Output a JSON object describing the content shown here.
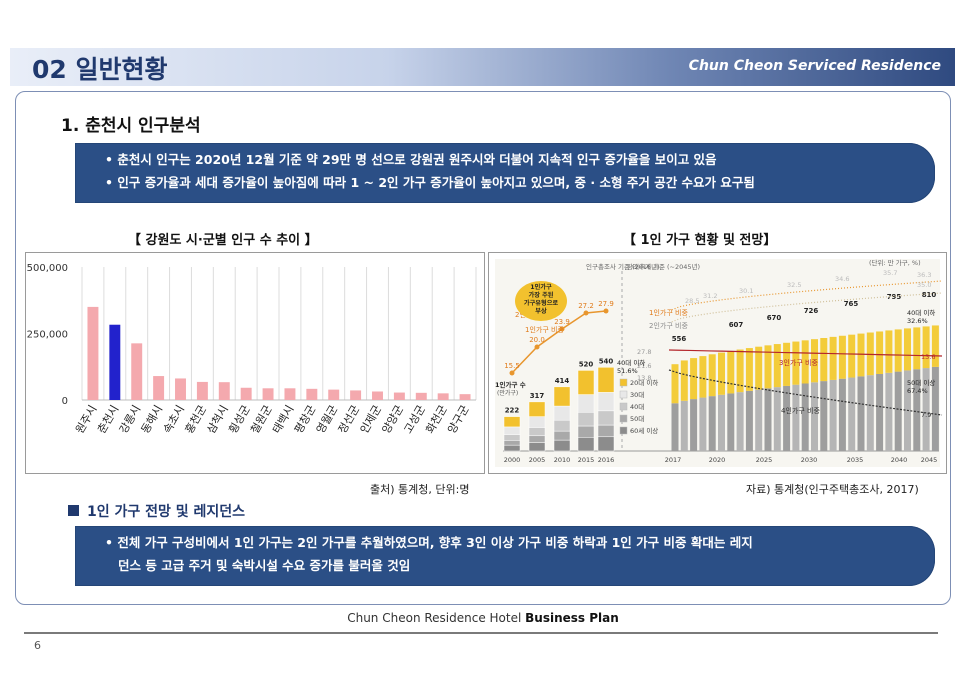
{
  "header": {
    "title": "02 일반현황",
    "brand": "Chun Cheon  Serviced Residence"
  },
  "section": {
    "title": "1. 춘천시 인구분석"
  },
  "bullets_top": [
    "• 춘천시 인구는 2020년 12월 기준 약 29만 명 선으로 강원권 원주시와 더불어 지속적 인구 증가율을 보이고 있음",
    "• 인구 증가율과 세대 증가율이 높아짐에 따라 1 ~ 2인 가구 증가율이 높아지고 있으며, 중 · 소형 주거 공간 수요가 요구됨"
  ],
  "left_caption": "【 강원도 시·군별 인구 수 추이 】",
  "right_caption": "【 1인 가구 현황 및 전망】",
  "chart_data": {
    "type": "bar",
    "categories": [
      "원주시",
      "춘천시",
      "강릉시",
      "동해시",
      "속초시",
      "홍천군",
      "삼척시",
      "횡성군",
      "철원군",
      "태백시",
      "평창군",
      "영월군",
      "정선군",
      "인제군",
      "양양군",
      "고성군",
      "화천군",
      "양구군"
    ],
    "values": [
      350000,
      283000,
      213000,
      90000,
      81000,
      68000,
      67000,
      46000,
      44000,
      44000,
      42000,
      39000,
      36000,
      32000,
      28000,
      27000,
      25000,
      22000
    ],
    "highlight": "춘천시",
    "colors": {
      "normal": "#f4a9ae",
      "highlight": "#2222cc"
    },
    "yticks": [
      "500,000",
      "250,000",
      "0"
    ],
    "ylim": [
      0,
      500000
    ],
    "grid": "vertical"
  },
  "household": {
    "years": [
      "2000",
      "2005",
      "2010",
      "2015",
      "2016",
      "2017",
      "2020",
      "2025",
      "2030",
      "2035",
      "2040",
      "2045"
    ],
    "totals": [
      "222",
      "317",
      "414",
      "520",
      "540",
      "",
      "607",
      "670",
      "726",
      "765",
      "795",
      "810"
    ],
    "ratio_labels": [
      "15.5",
      "20.0",
      "23.9",
      "27.2",
      "27.9"
    ],
    "top_note": "인구총조사 기준 (2016년)",
    "top_note2": "장래추계 기준 (~2045년)",
    "unit_note": "(단위: 만 가구, %)",
    "bubble": [
      "1인가구",
      "가장 주된",
      "가구유형으로",
      "부상"
    ],
    "series_ratio_1": "1인가구 비중",
    "series_ratio_2": "2인가구 비중",
    "series_ratio_3": "3인가구 비중",
    "series_ratio_4": "4인가구 비중",
    "left_label": [
      "1인가구 수",
      "(만가구)"
    ],
    "age_legend": [
      "20대 이하",
      "30대",
      "40대",
      "50대",
      "60세 이상"
    ],
    "age_note_1": "40대 이하",
    "age_note_1b": "51.6%",
    "age_note_2": "40대 이하",
    "age_note_2b": "32.6%",
    "age_note_3": "50대 이상",
    "age_note_3b": "67.4%",
    "end_ratios": [
      "36.3",
      "35.0",
      "13.6",
      "7.9"
    ],
    "start_ratios": [
      "27.8",
      "21.6",
      "13.8"
    ],
    "early_ratios": [
      "28.5",
      "31.2"
    ],
    "mid_ratios": [
      "30.1",
      "32.5",
      "34.6",
      "35.7"
    ]
  },
  "sources": {
    "left": "출처) 통계청, 단위:명",
    "right": "자료) 통계청(인구주택총조사, 2017)"
  },
  "sub_heading": "1인 가구 전망 및 레지던스",
  "bullets_bottom": [
    "• 전체 가구 구성비에서 1인 가구는 2인 가구를 추월하였으며, 향후 3인 이상 가구 비중 하락과 1인 가구 비중 확대는 레지",
    "   던스 등 고급 주거 및 숙박시설 수요 증가를 불러올 것임"
  ],
  "footer": {
    "normal": "Chun Cheon   Residence Hotel ",
    "bold": "Business Plan",
    "page": "6"
  }
}
